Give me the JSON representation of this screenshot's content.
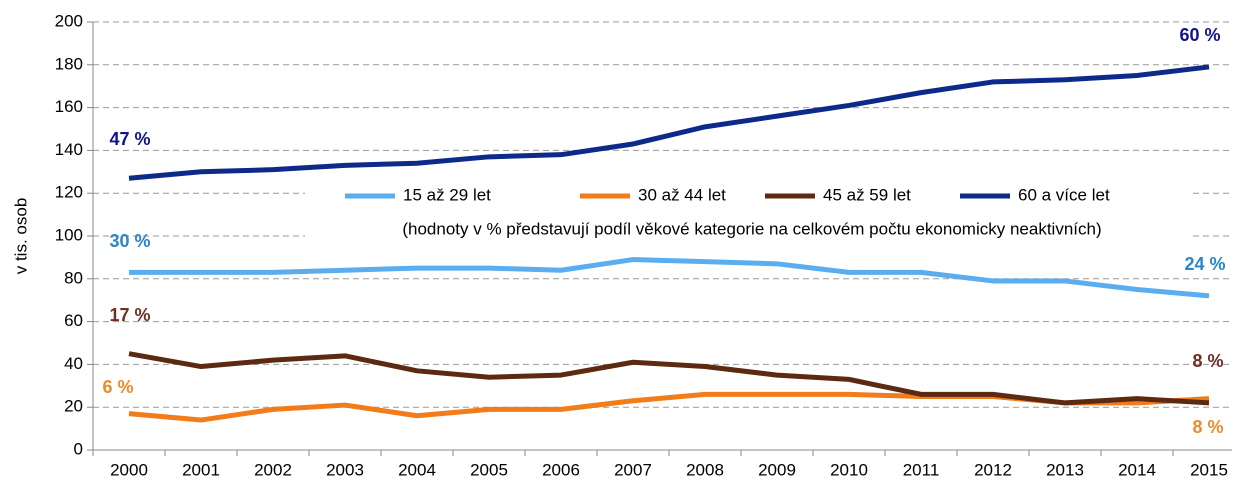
{
  "chart_data": {
    "type": "line",
    "y_axis_label": "v tis. osob",
    "note": "(hodnoty v % představují podíl věkové kategorie na celkovém počtu ekonomicky neaktivních)",
    "categories": [
      "2000",
      "2001",
      "2002",
      "2003",
      "2004",
      "2005",
      "2006",
      "2007",
      "2008",
      "2009",
      "2010",
      "2011",
      "2012",
      "2013",
      "2014",
      "2015"
    ],
    "series": [
      {
        "name": "15 až 29 let",
        "color": "#5aaef0",
        "values": [
          83,
          83,
          83,
          84,
          85,
          85,
          84,
          89,
          88,
          87,
          83,
          83,
          79,
          79,
          75,
          72
        ]
      },
      {
        "name": "30 až 44 let",
        "color": "#f27b1a",
        "values": [
          17,
          14,
          19,
          21,
          16,
          19,
          19,
          23,
          26,
          26,
          26,
          25,
          25,
          22,
          22,
          24
        ]
      },
      {
        "name": "45 až 59 let",
        "color": "#5c2a12",
        "values": [
          45,
          39,
          42,
          44,
          37,
          34,
          35,
          41,
          39,
          35,
          33,
          26,
          26,
          22,
          24,
          22
        ]
      },
      {
        "name": "60 a více let",
        "color": "#0d2a8a",
        "values": [
          127,
          130,
          131,
          133,
          134,
          137,
          138,
          143,
          151,
          156,
          161,
          167,
          172,
          173,
          175,
          179
        ]
      }
    ],
    "annotations": [
      {
        "text": "47 %",
        "color": "#12128a"
      },
      {
        "text": "30 %",
        "color": "#2a86c8"
      },
      {
        "text": "17 %",
        "color": "#6e2f25"
      },
      {
        "text": "6 %",
        "color": "#ee8a2a"
      },
      {
        "text": "60 %",
        "color": "#12128a"
      },
      {
        "text": "24 %",
        "color": "#2a86c8"
      },
      {
        "text": "8 %",
        "color": "#6e2f25"
      },
      {
        "text": "8 %",
        "color": "#ee8a2a"
      }
    ],
    "ylim": [
      0,
      200
    ],
    "yticks": [
      0,
      20,
      40,
      60,
      80,
      100,
      120,
      140,
      160,
      180,
      200
    ],
    "grid": true
  }
}
